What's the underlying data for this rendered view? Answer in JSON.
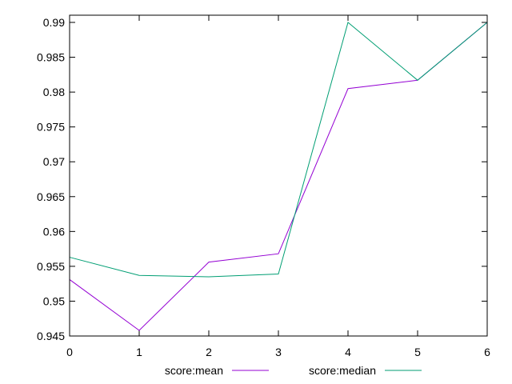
{
  "chart_data": {
    "type": "line",
    "title": "",
    "xlabel": "",
    "ylabel": "",
    "x": [
      0,
      1,
      2,
      3,
      4,
      5,
      6
    ],
    "xlim": [
      0,
      6
    ],
    "ylim": [
      0.945,
      0.99
    ],
    "xticks": [
      "0",
      "1",
      "2",
      "3",
      "4",
      "5",
      "6"
    ],
    "yticks": [
      "0.945",
      "0.95",
      "0.955",
      "0.96",
      "0.965",
      "0.97",
      "0.975",
      "0.98",
      "0.985",
      "0.99"
    ],
    "grid": false,
    "legend_position": "bottom",
    "series": [
      {
        "name": "score:mean",
        "color": "#9400d3",
        "values": [
          0.9531,
          0.9458,
          0.9556,
          0.9568,
          0.9805,
          0.9817,
          0.99
        ]
      },
      {
        "name": "score:median",
        "color": "#009e73",
        "values": [
          0.9563,
          0.9537,
          0.9535,
          0.9539,
          0.99,
          0.9817,
          0.99
        ]
      }
    ]
  }
}
